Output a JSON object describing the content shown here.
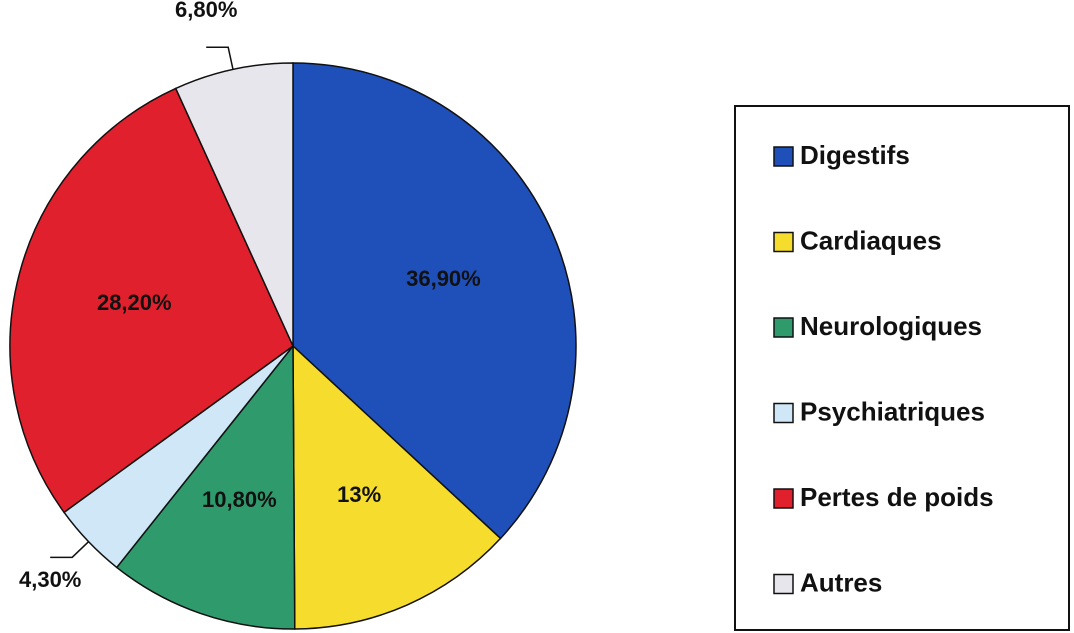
{
  "chart_data": {
    "type": "pie",
    "categories": [
      "Digestifs",
      "Cardiaques",
      "Neurologiques",
      "Psychiatriques",
      "Pertes de poids",
      "Autres"
    ],
    "values": [
      36.9,
      13,
      10.8,
      4.3,
      28.2,
      6.8
    ],
    "value_labels": [
      "36,90%",
      "13%",
      "10,80%",
      "4,30%",
      "28,20%",
      "6,80%"
    ],
    "colors": [
      "#1f4fb8",
      "#f6dc2c",
      "#2f9a6c",
      "#cfe7f6",
      "#e0212d",
      "#e6e6ec"
    ],
    "legend": "right"
  }
}
